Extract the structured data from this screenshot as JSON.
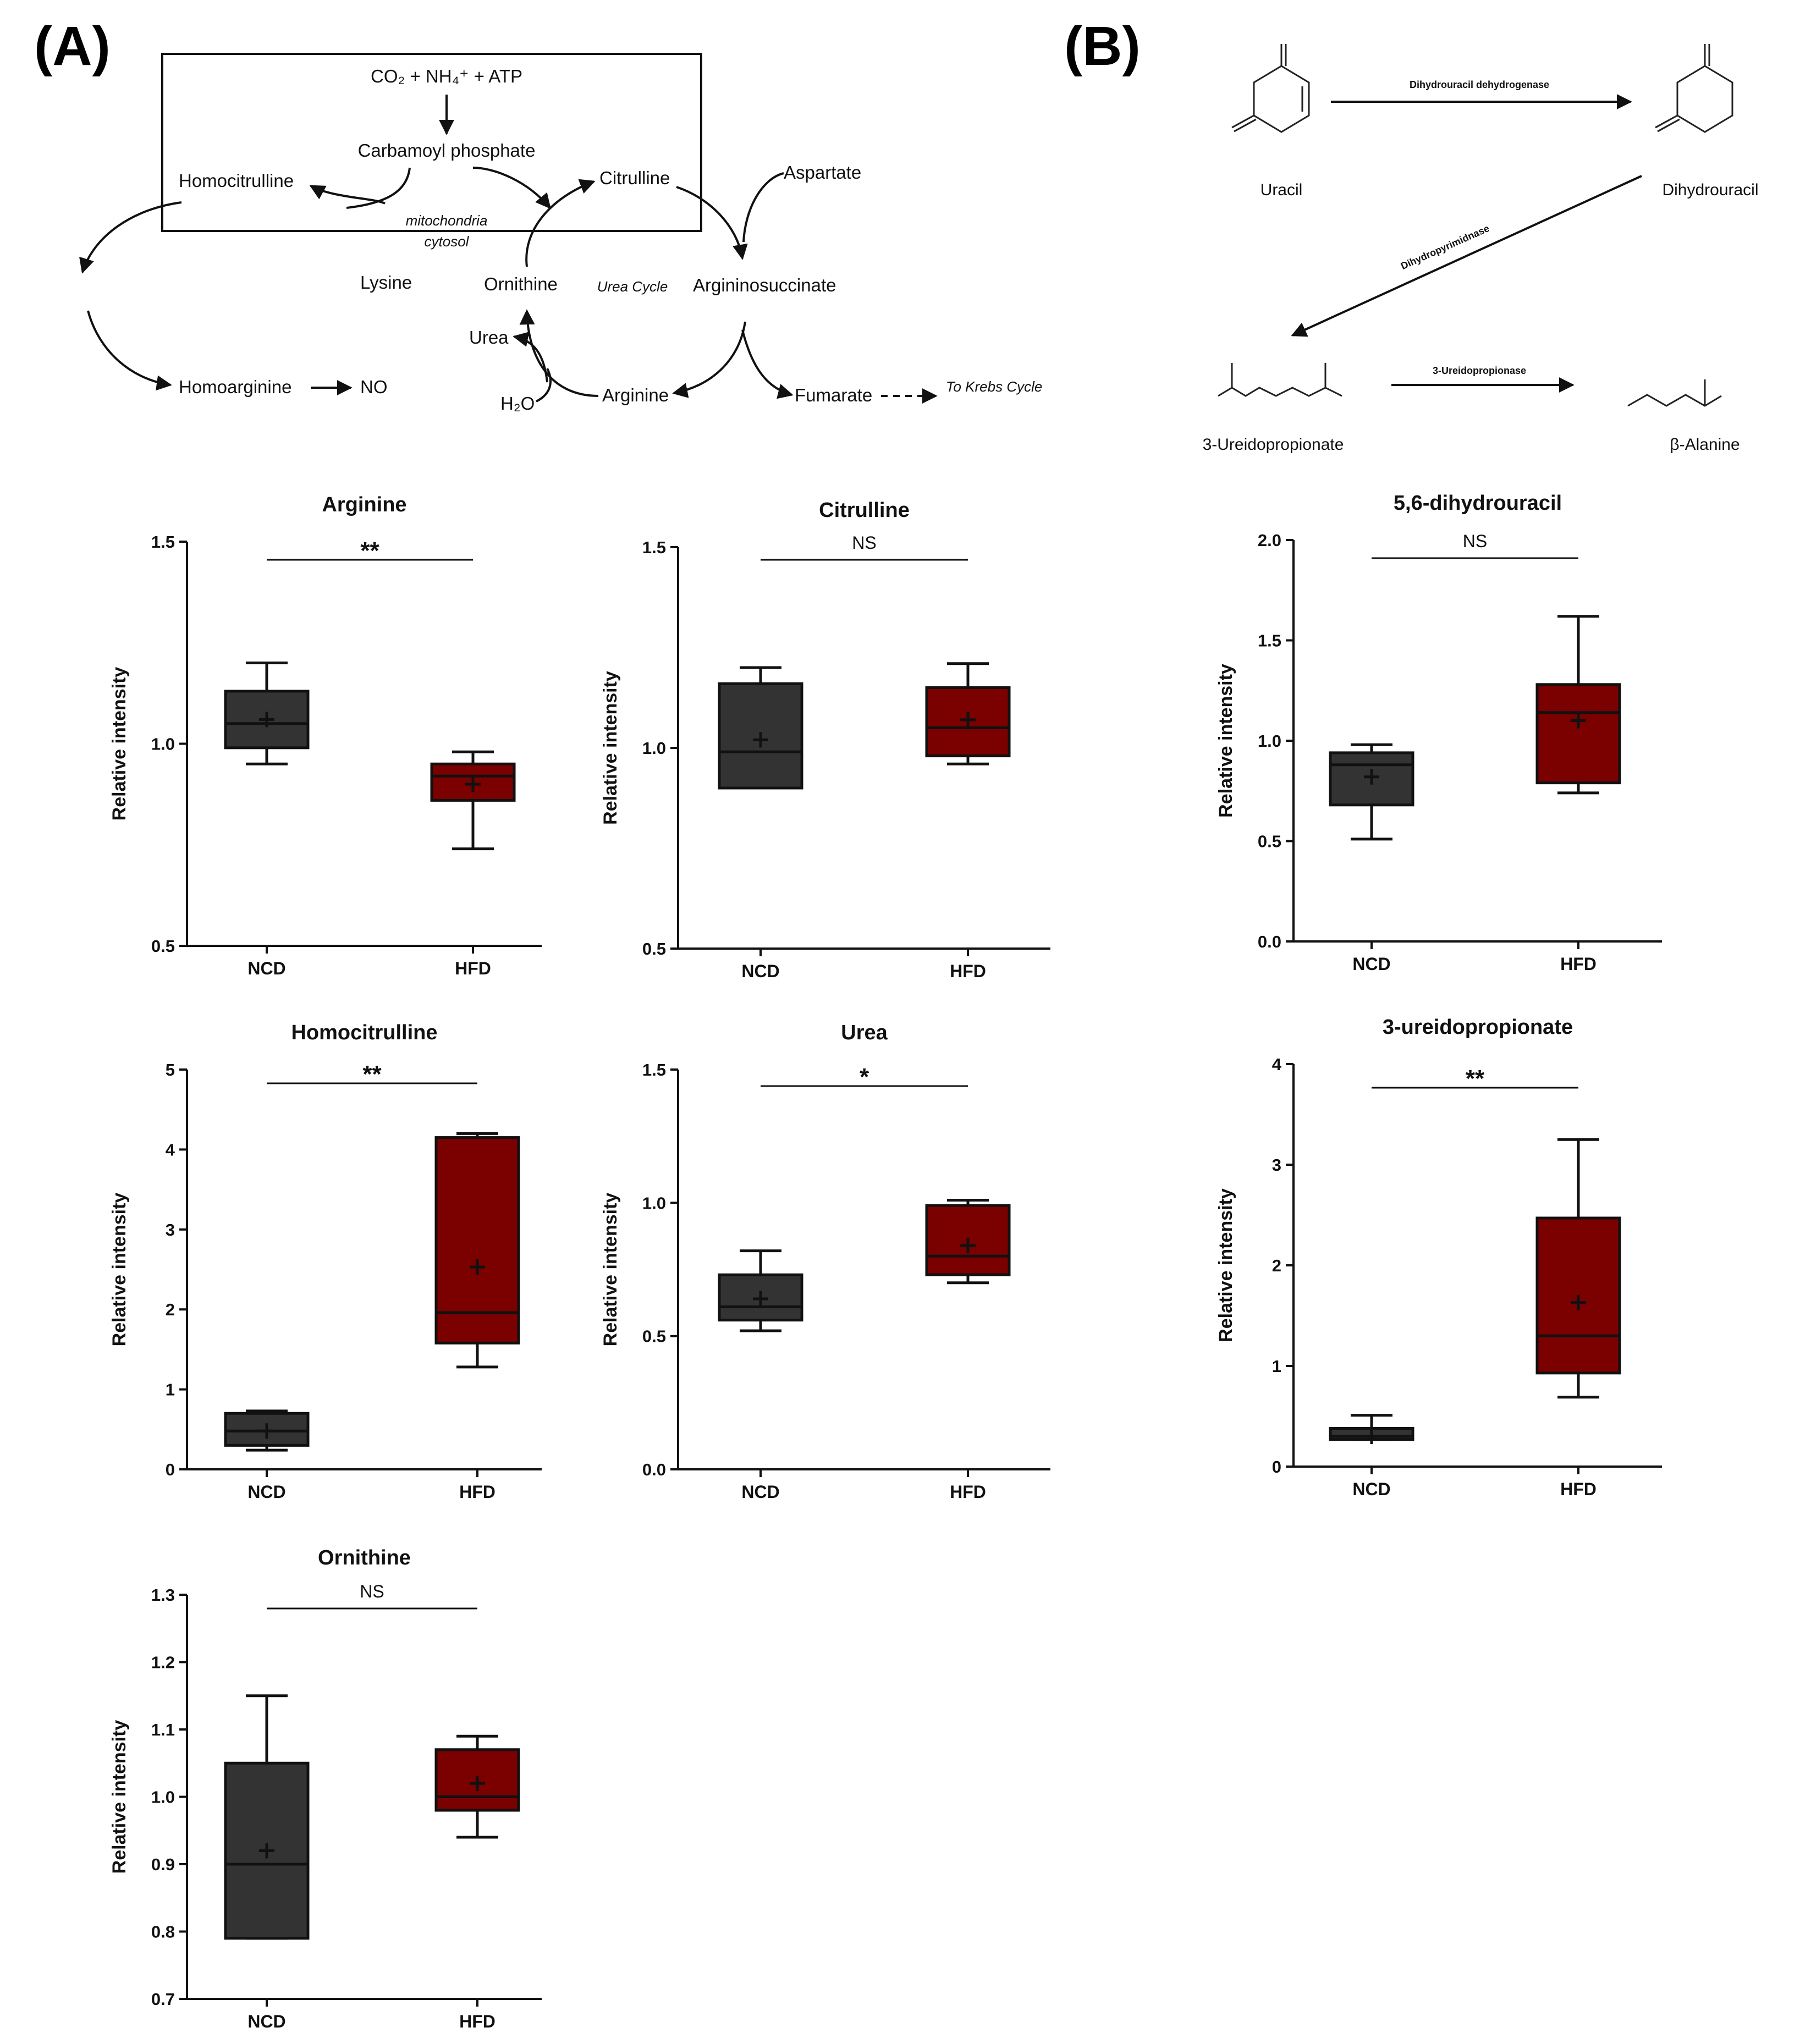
{
  "panels": {
    "a": "(A)",
    "b": "(B)"
  },
  "pathway_a": {
    "reactants": "CO₂ + NH₄⁺ + ATP",
    "carbamoyl_phosphate": "Carbamoyl phosphate",
    "homocitrulline": "Homocitrulline",
    "citrulline": "Citrulline",
    "aspartate": "Aspartate",
    "mitochondria": "mitochondria",
    "cytosol": "cytosol",
    "lysine": "Lysine",
    "ornithine": "Ornithine",
    "urea_cycle": "Urea Cycle",
    "argininosuccinate": "Argininosuccinate",
    "urea": "Urea",
    "homoarginine": "Homoarginine",
    "no": "NO",
    "water": "H₂O",
    "arginine": "Arginine",
    "fumarate": "Fumarate",
    "to_krebs": "To Krebs Cycle"
  },
  "pathway_b": {
    "uracil": "Uracil",
    "dihydrouracil": "Dihydrouracil",
    "enzyme1": "Dihydrouracil dehydrogenase",
    "enzyme2": "Dihydropyrimidnase",
    "enzyme3": "3-Ureidopropionase",
    "ureidopropionate": "3-Ureidopropionate",
    "beta_alanine": "β-Alanine"
  },
  "colors": {
    "ncd": "#333333",
    "hfd": "#7b0000"
  },
  "chart_data": [
    {
      "type": "box",
      "title": "Arginine",
      "ylabel": "Relative intensity",
      "categories": [
        "NCD",
        "HFD"
      ],
      "ylim": [
        0.5,
        1.5
      ],
      "yticks": [
        0.5,
        1.0,
        1.5
      ],
      "tick_labels": [
        "0.5",
        "1.0",
        "1.5"
      ],
      "significance": "**",
      "boxes": [
        {
          "min": 0.95,
          "q1": 0.99,
          "median": 1.05,
          "q3": 1.13,
          "max": 1.2,
          "mean": 1.06
        },
        {
          "min": 0.74,
          "q1": 0.86,
          "median": 0.92,
          "q3": 0.95,
          "max": 0.98,
          "mean": 0.9
        }
      ]
    },
    {
      "type": "box",
      "title": "Citrulline",
      "ylabel": "Relative intensity",
      "categories": [
        "NCD",
        "HFD"
      ],
      "ylim": [
        0.5,
        1.5
      ],
      "yticks": [
        0.5,
        1.0,
        1.5
      ],
      "tick_labels": [
        "0.5",
        "1.0",
        "1.5"
      ],
      "significance": "NS",
      "boxes": [
        {
          "min": 0.9,
          "q1": 0.9,
          "median": 0.99,
          "q3": 1.16,
          "max": 1.2,
          "mean": 1.02
        },
        {
          "min": 0.96,
          "q1": 0.98,
          "median": 1.05,
          "q3": 1.15,
          "max": 1.21,
          "mean": 1.07
        }
      ]
    },
    {
      "type": "box",
      "title": "5,6-dihydrouracil",
      "ylabel": "Relative intensity",
      "categories": [
        "NCD",
        "HFD"
      ],
      "ylim": [
        0.0,
        2.0
      ],
      "yticks": [
        0.0,
        0.5,
        1.0,
        1.5,
        2.0
      ],
      "tick_labels": [
        "0.0",
        "0.5",
        "1.0",
        "1.5",
        "2.0"
      ],
      "significance": "NS",
      "boxes": [
        {
          "min": 0.51,
          "q1": 0.68,
          "median": 0.88,
          "q3": 0.94,
          "max": 0.98,
          "mean": 0.82
        },
        {
          "min": 0.74,
          "q1": 0.79,
          "median": 1.14,
          "q3": 1.28,
          "max": 1.62,
          "mean": 1.1
        }
      ]
    },
    {
      "type": "box",
      "title": "Homocitrulline",
      "ylabel": "Relative intensity",
      "categories": [
        "NCD",
        "HFD"
      ],
      "ylim": [
        0,
        5
      ],
      "yticks": [
        0,
        1,
        2,
        3,
        4,
        5
      ],
      "tick_labels": [
        "0",
        "1",
        "2",
        "3",
        "4",
        "5"
      ],
      "significance": "**",
      "boxes": [
        {
          "min": 0.24,
          "q1": 0.3,
          "median": 0.48,
          "q3": 0.7,
          "max": 0.73,
          "mean": 0.48
        },
        {
          "min": 1.28,
          "q1": 1.58,
          "median": 1.96,
          "q3": 4.15,
          "max": 4.2,
          "mean": 2.53
        }
      ]
    },
    {
      "type": "box",
      "title": "Urea",
      "ylabel": "Relative intensity",
      "categories": [
        "NCD",
        "HFD"
      ],
      "ylim": [
        0.0,
        1.5
      ],
      "yticks": [
        0.0,
        0.5,
        1.0,
        1.5
      ],
      "tick_labels": [
        "0.0",
        "0.5",
        "1.0",
        "1.5"
      ],
      "significance": "*",
      "boxes": [
        {
          "min": 0.52,
          "q1": 0.56,
          "median": 0.61,
          "q3": 0.73,
          "max": 0.82,
          "mean": 0.64
        },
        {
          "min": 0.7,
          "q1": 0.73,
          "median": 0.8,
          "q3": 0.99,
          "max": 1.01,
          "mean": 0.84
        }
      ]
    },
    {
      "type": "box",
      "title": "3-ureidopropionate",
      "ylabel": "Relative intensity",
      "categories": [
        "NCD",
        "HFD"
      ],
      "ylim": [
        0,
        4
      ],
      "yticks": [
        0,
        1,
        2,
        3,
        4
      ],
      "tick_labels": [
        "0",
        "1",
        "2",
        "3",
        "4"
      ],
      "significance": "**",
      "boxes": [
        {
          "min": 0.27,
          "q1": 0.27,
          "median": 0.3,
          "q3": 0.38,
          "max": 0.51,
          "mean": 0.3
        },
        {
          "min": 0.69,
          "q1": 0.93,
          "median": 1.3,
          "q3": 2.47,
          "max": 3.25,
          "mean": 1.63
        }
      ]
    },
    {
      "type": "box",
      "title": "Ornithine",
      "ylabel": "Relative intensity",
      "categories": [
        "NCD",
        "HFD"
      ],
      "ylim": [
        0.7,
        1.3
      ],
      "yticks": [
        0.7,
        0.8,
        0.9,
        1.0,
        1.1,
        1.2,
        1.3
      ],
      "tick_labels": [
        "0.7",
        "0.8",
        "0.9",
        "1.0",
        "1.1",
        "1.2",
        "1.3"
      ],
      "significance": "NS",
      "boxes": [
        {
          "min": 0.79,
          "q1": 0.79,
          "median": 0.9,
          "q3": 1.05,
          "max": 1.15,
          "mean": 0.92
        },
        {
          "min": 0.94,
          "q1": 0.98,
          "median": 1.0,
          "q3": 1.07,
          "max": 1.09,
          "mean": 1.02
        }
      ]
    }
  ]
}
